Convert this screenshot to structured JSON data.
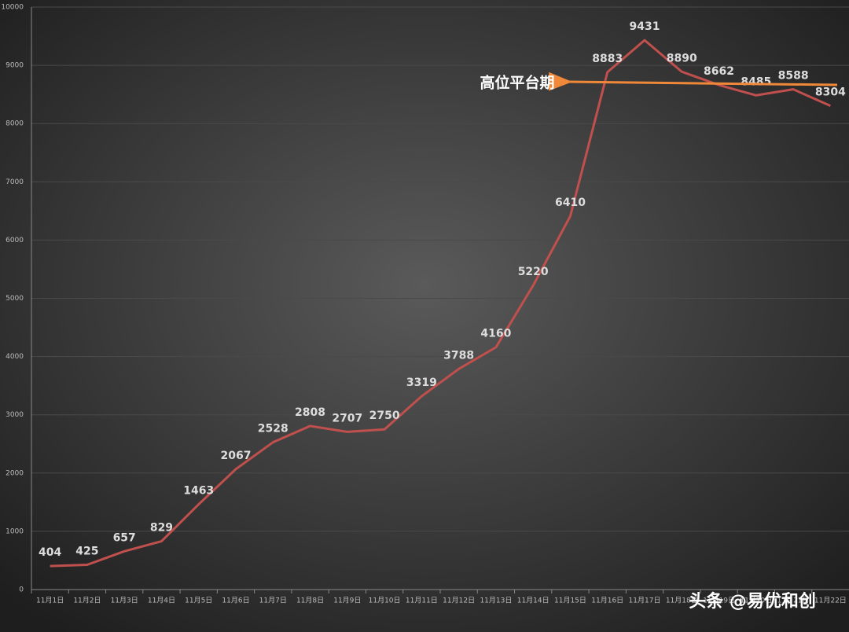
{
  "chart_data": {
    "type": "line",
    "categories": [
      "11月1日",
      "11月2日",
      "11月3日",
      "11月4日",
      "11月5日",
      "11月6日",
      "11月7日",
      "11月8日",
      "11月9日",
      "11月10日",
      "11月11日",
      "11月12日",
      "11月13日",
      "11月14日",
      "11月15日",
      "11月16日",
      "11月17日",
      "11月18日",
      "11月19日",
      "11月20日",
      "11月21日",
      "11月22日"
    ],
    "values": [
      404,
      425,
      657,
      829,
      1463,
      2067,
      2528,
      2808,
      2707,
      2750,
      3319,
      3788,
      4160,
      5220,
      6410,
      8883,
      9431,
      8890,
      8662,
      8485,
      8588,
      8304
    ],
    "color": "#c0504d",
    "ylim": [
      0,
      10000
    ],
    "yticks": [
      0,
      1000,
      2000,
      3000,
      4000,
      5000,
      6000,
      7000,
      8000,
      9000,
      10000
    ],
    "grid": true,
    "annotation": "高位平台期",
    "watermark": "头条 @易优和创"
  }
}
